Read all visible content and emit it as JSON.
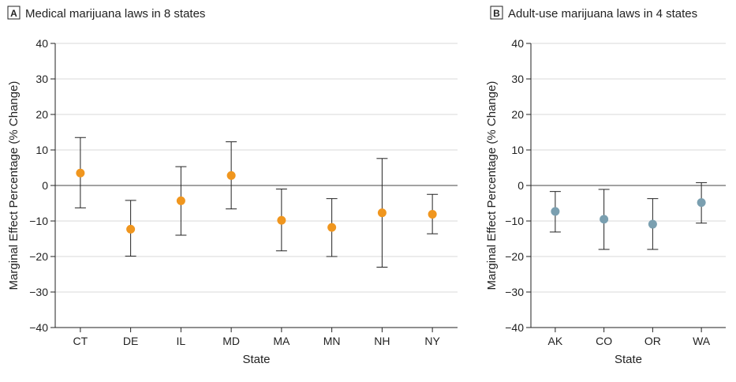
{
  "chart_data": [
    {
      "type": "scatter",
      "panel_letter": "A",
      "title": "Medical marijuana laws in 8 states",
      "xlabel": "State",
      "ylabel": "Marginal Effect Percentage (% Change)",
      "ylim": [
        -40,
        40
      ],
      "yticks": [
        40,
        30,
        20,
        10,
        0,
        -10,
        -20,
        -30,
        -40
      ],
      "ytick_labels": [
        "40",
        "30",
        "20",
        "10",
        "0",
        "−10",
        "−20",
        "−30",
        "−40"
      ],
      "grid": true,
      "marker_color": "#f0961e",
      "categories": [
        "CT",
        "DE",
        "IL",
        "MD",
        "MA",
        "MN",
        "NH",
        "NY"
      ],
      "values": [
        3.5,
        -12.3,
        -4.3,
        2.8,
        -9.8,
        -11.8,
        -7.7,
        -8.1
      ],
      "ci_low": [
        -6.3,
        -19.9,
        -14.0,
        -6.6,
        -18.4,
        -20.0,
        -23.0,
        -13.6
      ],
      "ci_high": [
        13.5,
        -4.2,
        5.3,
        12.3,
        -1.0,
        -3.7,
        7.6,
        -2.5
      ]
    },
    {
      "type": "scatter",
      "panel_letter": "B",
      "title": "Adult-use marijuana laws in 4 states",
      "xlabel": "State",
      "ylabel": "Marginal Effect Percentage (% Change)",
      "ylim": [
        -40,
        40
      ],
      "yticks": [
        40,
        30,
        20,
        10,
        0,
        -10,
        -20,
        -30,
        -40
      ],
      "ytick_labels": [
        "40",
        "30",
        "20",
        "10",
        "0",
        "−10",
        "−20",
        "−30",
        "−40"
      ],
      "grid": true,
      "marker_color": "#7a9fb0",
      "categories": [
        "AK",
        "CO",
        "OR",
        "WA"
      ],
      "values": [
        -7.3,
        -9.5,
        -10.9,
        -4.8
      ],
      "ci_low": [
        -13.1,
        -18.0,
        -18.0,
        -10.6
      ],
      "ci_high": [
        -1.7,
        -1.1,
        -3.7,
        0.8
      ]
    }
  ]
}
